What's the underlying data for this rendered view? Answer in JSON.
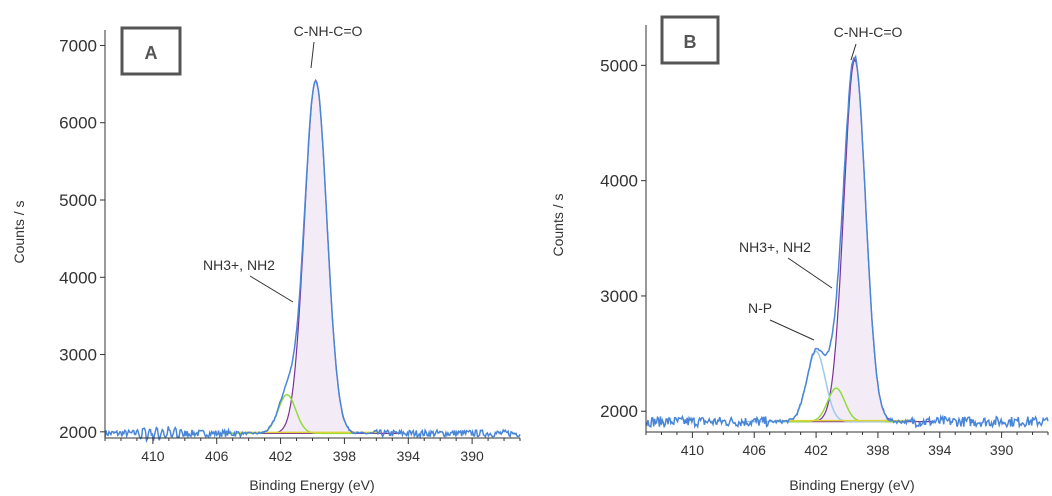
{
  "chart_data": [
    {
      "type": "line",
      "panel_label": "A",
      "xlabel": "Binding Energy (eV)",
      "ylabel": "Counts / s",
      "xlim": [
        413,
        387
      ],
      "ylim": [
        1920,
        7200
      ],
      "xticks": [
        410,
        406,
        402,
        398,
        394,
        390
      ],
      "yticks": [
        2000,
        3000,
        4000,
        5000,
        6000,
        7000
      ],
      "baseline": 1980,
      "peaks": [
        {
          "component": "C-NH-C=O",
          "center": 399.8,
          "height": 6550,
          "fwhm": 1.65
        },
        {
          "component": "NH3+, NH2",
          "center": 401.6,
          "height": 2480,
          "fwhm": 1.3
        }
      ],
      "annotations": [
        {
          "text": "C-NH-C=O",
          "x": 399.8,
          "y": 6650
        },
        {
          "text": "NH3+, NH2",
          "x": 400.7,
          "y": 2820
        }
      ]
    },
    {
      "type": "line",
      "panel_label": "B",
      "xlabel": "Binding Energy (eV)",
      "ylabel": "Counts / s",
      "xlim": [
        413,
        387
      ],
      "ylim": [
        1820,
        5350
      ],
      "xticks": [
        410,
        406,
        402,
        398,
        394,
        390
      ],
      "yticks": [
        2000,
        3000,
        4000,
        5000
      ],
      "baseline": 1910,
      "peaks": [
        {
          "component": "C-NH-C=O",
          "center": 399.5,
          "height": 5050,
          "fwhm": 1.65
        },
        {
          "component": "NH3+, NH2",
          "center": 400.7,
          "height": 2200,
          "fwhm": 1.3
        },
        {
          "component": "N-P",
          "center": 402.0,
          "height": 2520,
          "fwhm": 1.4
        }
      ],
      "annotations": [
        {
          "text": "C-NH-C=O",
          "x": 399.5,
          "y": 5050
        },
        {
          "text": "NH3+, NH2",
          "x": 400.7,
          "y": 3100
        },
        {
          "text": "N-P",
          "x": 401.8,
          "y": 2560
        }
      ]
    }
  ],
  "colors": {
    "envelope": "#4a86d8",
    "fit": "#7b3294",
    "fill": "#f3ecf6",
    "component_green": "#8fdc3a",
    "component_blue": "#9ec9ee",
    "baseline": "#e0d23a",
    "text": "#333333",
    "box": "#555555"
  }
}
